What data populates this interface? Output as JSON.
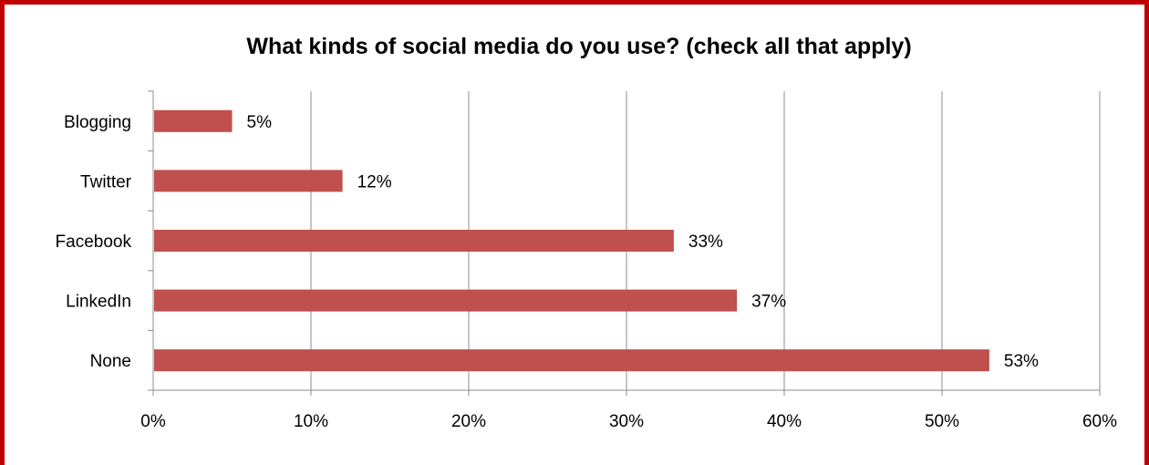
{
  "chart_data": {
    "type": "bar",
    "orientation": "horizontal",
    "title": "What kinds of social media do you use? (check all that apply)",
    "categories": [
      "Blogging",
      "Twitter",
      "Facebook",
      "LinkedIn",
      "None"
    ],
    "values": [
      5,
      12,
      33,
      37,
      53
    ],
    "value_labels": [
      "5%",
      "12%",
      "33%",
      "37%",
      "53%"
    ],
    "x_ticks": [
      0,
      10,
      20,
      30,
      40,
      50,
      60
    ],
    "x_tick_labels": [
      "0%",
      "10%",
      "20%",
      "30%",
      "40%",
      "50%",
      "60%"
    ],
    "xlim": [
      0,
      60
    ],
    "grid": true,
    "legend": "none",
    "bar_color": "#c0504d",
    "border_color": "#c00000"
  }
}
